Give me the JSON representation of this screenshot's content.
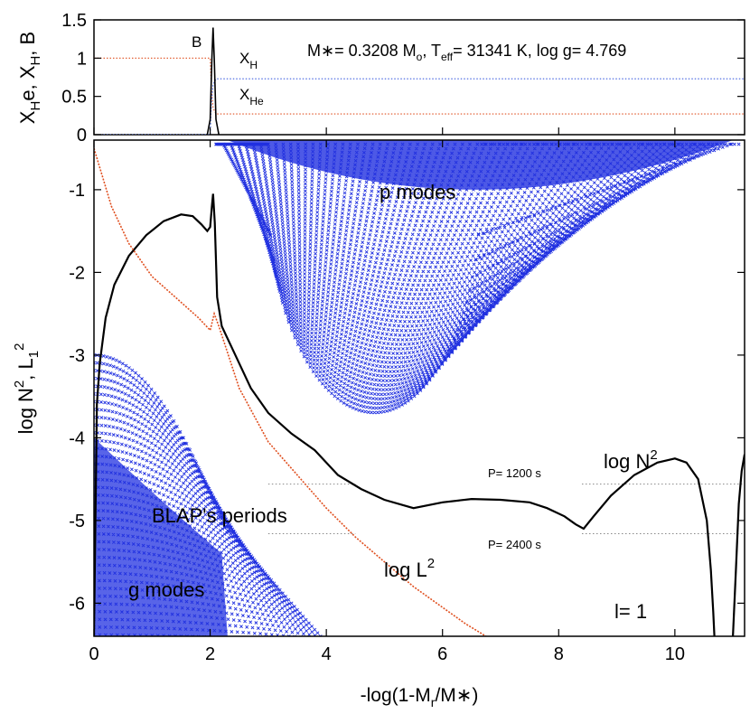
{
  "chart_data": [
    {
      "type": "line",
      "panel": "top",
      "ylabel_main": "X",
      "ylabel_parts": [
        {
          "text": "X",
          "sub": "H"
        },
        {
          "text": "e, X",
          "sub": "H"
        },
        {
          "text": ", B",
          "sub": ""
        }
      ],
      "xlim": [
        0,
        11.2
      ],
      "ylim": [
        0,
        1.5
      ],
      "yticks": [
        0,
        0.5,
        1,
        1.5
      ],
      "ytick_labels": [
        "0",
        "0.5",
        "1",
        "1.5"
      ],
      "title_text": "M∗= 0.3208 Mₒ, T",
      "title_parts": {
        "mstar": "M∗= 0.3208 M",
        "msun_sub": "o",
        "teff": ", T",
        "teff_sub": "eff",
        "rest": "= 31341 K, log g= 4.769"
      },
      "annotations": {
        "B": "B",
        "XH": "X",
        "XH_sub": "H",
        "XHe": "X",
        "XHe_sub": "He"
      },
      "series": [
        {
          "name": "X_He",
          "color": "#e05020",
          "style": "dotted",
          "x": [
            0,
            2.0,
            2.02,
            2.05,
            2.1,
            11.2
          ],
          "y": [
            1.0,
            1.0,
            0.6,
            0.35,
            0.27,
            0.27
          ]
        },
        {
          "name": "X_H",
          "color": "#4060e0",
          "style": "dotted",
          "x": [
            0,
            2.0,
            2.02,
            2.05,
            2.1,
            11.2
          ],
          "y": [
            0.0,
            0.0,
            0.4,
            0.65,
            0.73,
            0.73
          ]
        },
        {
          "name": "B",
          "color": "#000000",
          "style": "solid",
          "x": [
            1.95,
            2.0,
            2.03,
            2.05,
            2.07,
            2.1,
            2.15
          ],
          "y": [
            0,
            0.2,
            1.0,
            1.4,
            1.0,
            0.2,
            0
          ]
        }
      ]
    },
    {
      "type": "line",
      "panel": "bottom",
      "xlabel_parts": {
        "pre": "-log(1-M",
        "sub": "r",
        "post": "/M∗)"
      },
      "ylabel_parts": {
        "pre": "log N",
        "sup1": "2",
        "mid": ", L",
        "sub": "1",
        "sup2": "2"
      },
      "xlim": [
        0,
        11.2
      ],
      "ylim": [
        -6.4,
        -0.4
      ],
      "xticks": [
        0,
        2,
        4,
        6,
        8,
        10
      ],
      "xtick_labels": [
        "0",
        "2",
        "4",
        "6",
        "8",
        "10"
      ],
      "yticks": [
        -6,
        -5,
        -4,
        -3,
        -2,
        -1
      ],
      "ytick_labels": [
        "-6",
        "-5",
        "-4",
        "-3",
        "-2",
        "-1"
      ],
      "annotations": {
        "p_modes": "p modes",
        "g_modes": "g modes",
        "blap": "BLAP's periods",
        "logN2": "log N",
        "logN2_sup": "2",
        "logL2": "log L",
        "logL2_sup": "2",
        "ell": "l= 1",
        "p1200": "P= 1200 s",
        "p2400": "P= 2400 s"
      },
      "period_lines": [
        {
          "label": "P= 1200 s",
          "y": -4.56
        },
        {
          "label": "P= 2400 s",
          "y": -5.16
        }
      ],
      "series": [
        {
          "name": "log N2",
          "color": "#000000",
          "x": [
            0.0,
            0.05,
            0.1,
            0.2,
            0.35,
            0.6,
            0.9,
            1.2,
            1.5,
            1.7,
            1.85,
            1.95,
            2.0,
            2.03,
            2.05,
            2.08,
            2.12,
            2.2,
            2.4,
            2.7,
            3.0,
            3.4,
            3.8,
            4.2,
            4.6,
            5.0,
            5.5,
            6.0,
            6.5,
            7.0,
            7.5,
            7.8,
            8.1,
            8.3,
            8.43,
            8.6,
            8.9,
            9.3,
            9.7,
            10.0,
            10.2,
            10.4,
            10.55,
            10.62,
            10.66,
            10.68
          ],
          "y": [
            -6.4,
            -3.6,
            -3.1,
            -2.55,
            -2.15,
            -1.8,
            -1.55,
            -1.38,
            -1.3,
            -1.32,
            -1.42,
            -1.5,
            -1.45,
            -1.2,
            -1.05,
            -1.4,
            -2.3,
            -2.65,
            -2.95,
            -3.4,
            -3.7,
            -3.95,
            -4.15,
            -4.45,
            -4.62,
            -4.75,
            -4.85,
            -4.78,
            -4.74,
            -4.75,
            -4.78,
            -4.85,
            -4.95,
            -5.05,
            -5.1,
            -4.95,
            -4.7,
            -4.45,
            -4.3,
            -4.25,
            -4.3,
            -4.5,
            -5.0,
            -5.6,
            -6.1,
            -6.4
          ]
        },
        {
          "name": "log N2 (edge)",
          "color": "#000000",
          "x": [
            11.0,
            11.05,
            11.1,
            11.15,
            11.2
          ],
          "y": [
            -6.4,
            -5.6,
            -4.8,
            -4.4,
            -4.2
          ]
        },
        {
          "name": "log L2",
          "color": "#e05020",
          "x": [
            0.0,
            0.3,
            0.6,
            1.0,
            1.4,
            1.8,
            2.0,
            2.07,
            2.15,
            2.5,
            3.0,
            3.5,
            4.0,
            4.5,
            5.0,
            5.5,
            6.0,
            6.4,
            6.75
          ],
          "y": [
            -0.5,
            -1.2,
            -1.65,
            -2.05,
            -2.3,
            -2.55,
            -2.7,
            -2.5,
            -2.65,
            -3.4,
            -4.05,
            -4.45,
            -4.85,
            -5.2,
            -5.5,
            -5.8,
            -6.05,
            -6.25,
            -6.4
          ]
        }
      ]
    }
  ]
}
